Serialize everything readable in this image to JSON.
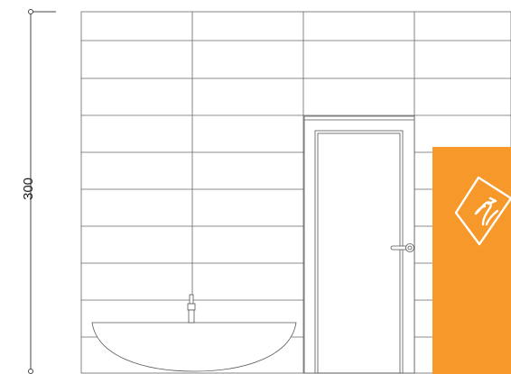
{
  "dimension": {
    "height_label": "300"
  },
  "brand": {
    "panel_color": "#F7982A",
    "mark_color": "#FFFFFF",
    "icon": "bird-in-diamond-icon"
  },
  "drawing": {
    "line_color": "#555555",
    "elements": [
      "tiled-wall",
      "door",
      "door-handle",
      "washbasin",
      "faucet"
    ]
  }
}
